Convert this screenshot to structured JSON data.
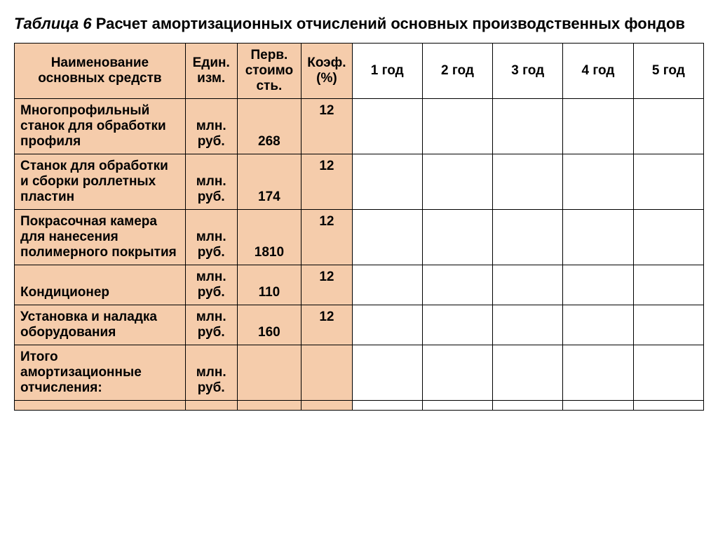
{
  "title_prefix": "Таблица 6",
  "title_rest": " Расчет амортизационных отчислений основных производственных фондов",
  "columns": {
    "name": "Наименование основных средств",
    "unit": "Един. изм.",
    "cost": "Перв. стоимо сть.",
    "coef": "Коэф. (%)",
    "y1": "1 год",
    "y2": "2 год",
    "y3": "3 год",
    "y4": "4 год",
    "y5": "5 год"
  },
  "rows": [
    {
      "name": "Многопрофильный станок для обработки профиля",
      "unit": "млн. руб.",
      "cost": "268",
      "coef": "12",
      "justify": false
    },
    {
      "name": "Станок для обработки и сборки роллетных пластин",
      "unit": "млн. руб.",
      "cost": "174",
      "coef": "12",
      "justify": false
    },
    {
      "name": "Покрасочная камера для нанесения полимерного покрытия",
      "unit": "млн. руб.",
      "cost": "1810",
      "coef": "12",
      "justify": false
    },
    {
      "name": "Кондиционер",
      "unit": "млн. руб.",
      "cost": "110",
      "coef": "12",
      "justify": false
    },
    {
      "name": "Установка и наладка оборудования",
      "unit": "млн. руб.",
      "cost": "160",
      "coef": "12",
      "justify": true
    },
    {
      "name": "Итого амортизационные отчисления:",
      "unit": "млн. руб.",
      "cost": "",
      "coef": "",
      "justify": false
    }
  ],
  "style": {
    "shaded_bg": "#f5ccab",
    "border_color": "#000000",
    "font_family": "Arial",
    "header_fontsize": 19,
    "cell_fontsize": 19
  }
}
